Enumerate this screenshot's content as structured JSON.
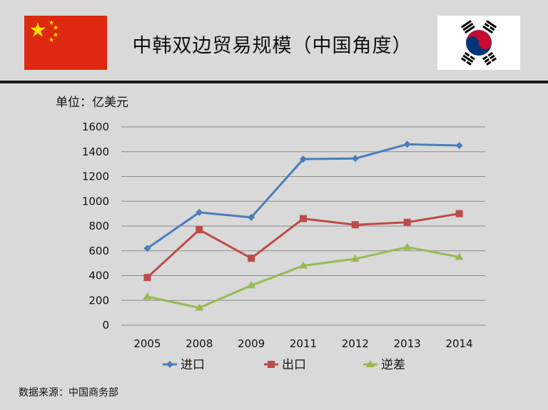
{
  "header": {
    "title": "中韩双边贸易规模（中国角度）",
    "flag_left": "china-flag",
    "flag_right": "south-korea-flag"
  },
  "unit_label": "单位：亿美元",
  "source_label": "数据来源：中国商务部",
  "colors": {
    "background": "#d9d9d9",
    "import": "#4a7ebb",
    "export": "#be4b48",
    "deficit": "#98b954",
    "china_red": "#de2910",
    "china_yellow": "#ffde00"
  },
  "chart_data": {
    "type": "line",
    "title": "",
    "xlabel": "",
    "ylabel": "单位：亿美元",
    "categories": [
      "2005",
      "2008",
      "2009",
      "2011",
      "2012",
      "2013",
      "2014"
    ],
    "ylim": [
      0,
      1600
    ],
    "yticks": [
      0,
      200,
      400,
      600,
      800,
      1000,
      1200,
      1400,
      1600
    ],
    "grid": true,
    "legend_position": "bottom",
    "series": [
      {
        "name": "进口",
        "marker": "diamond",
        "color": "#4a7ebb",
        "values": [
          620,
          910,
          870,
          1340,
          1345,
          1460,
          1450
        ]
      },
      {
        "name": "出口",
        "marker": "square",
        "color": "#be4b48",
        "values": [
          385,
          770,
          540,
          860,
          810,
          830,
          900
        ]
      },
      {
        "name": "逆差",
        "marker": "triangle",
        "color": "#98b954",
        "values": [
          230,
          140,
          320,
          480,
          535,
          630,
          550
        ]
      }
    ]
  }
}
